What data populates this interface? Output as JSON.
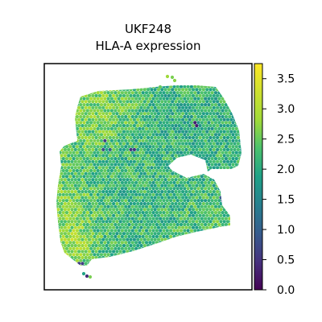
{
  "chart_data": {
    "type": "heatmap",
    "title_line1": "UKF248",
    "title_line2": "HLA-A expression",
    "xlabel": "",
    "ylabel": "",
    "colorbar": {
      "colormap": "viridis",
      "range": [
        0.0,
        3.75
      ],
      "ticks": [
        "0.0",
        "0.5",
        "1.0",
        "1.5",
        "2.0",
        "2.5",
        "3.0",
        "3.5"
      ]
    },
    "dominant_value_range": [
      1.8,
      2.8
    ],
    "region_summary": [
      {
        "region": "upper lobe, left/top edge",
        "approx_value": 2.7
      },
      {
        "region": "upper lobe, right side",
        "approx_value": 2.0
      },
      {
        "region": "lower lobe, left edge",
        "approx_value": 2.9
      },
      {
        "region": "lower lobe, bottom-left",
        "approx_value": 3.2
      },
      {
        "region": "lower lobe, center",
        "approx_value": 2.1
      }
    ],
    "low_value_spots": [
      {
        "approx_value": 0.6
      },
      {
        "approx_value": 0.8
      },
      {
        "approx_value": 1.0
      },
      {
        "approx_value": 0.5
      },
      {
        "approx_value": 0.3
      },
      {
        "approx_value": 0.9
      }
    ],
    "grid": false,
    "axes_ticks": false
  }
}
